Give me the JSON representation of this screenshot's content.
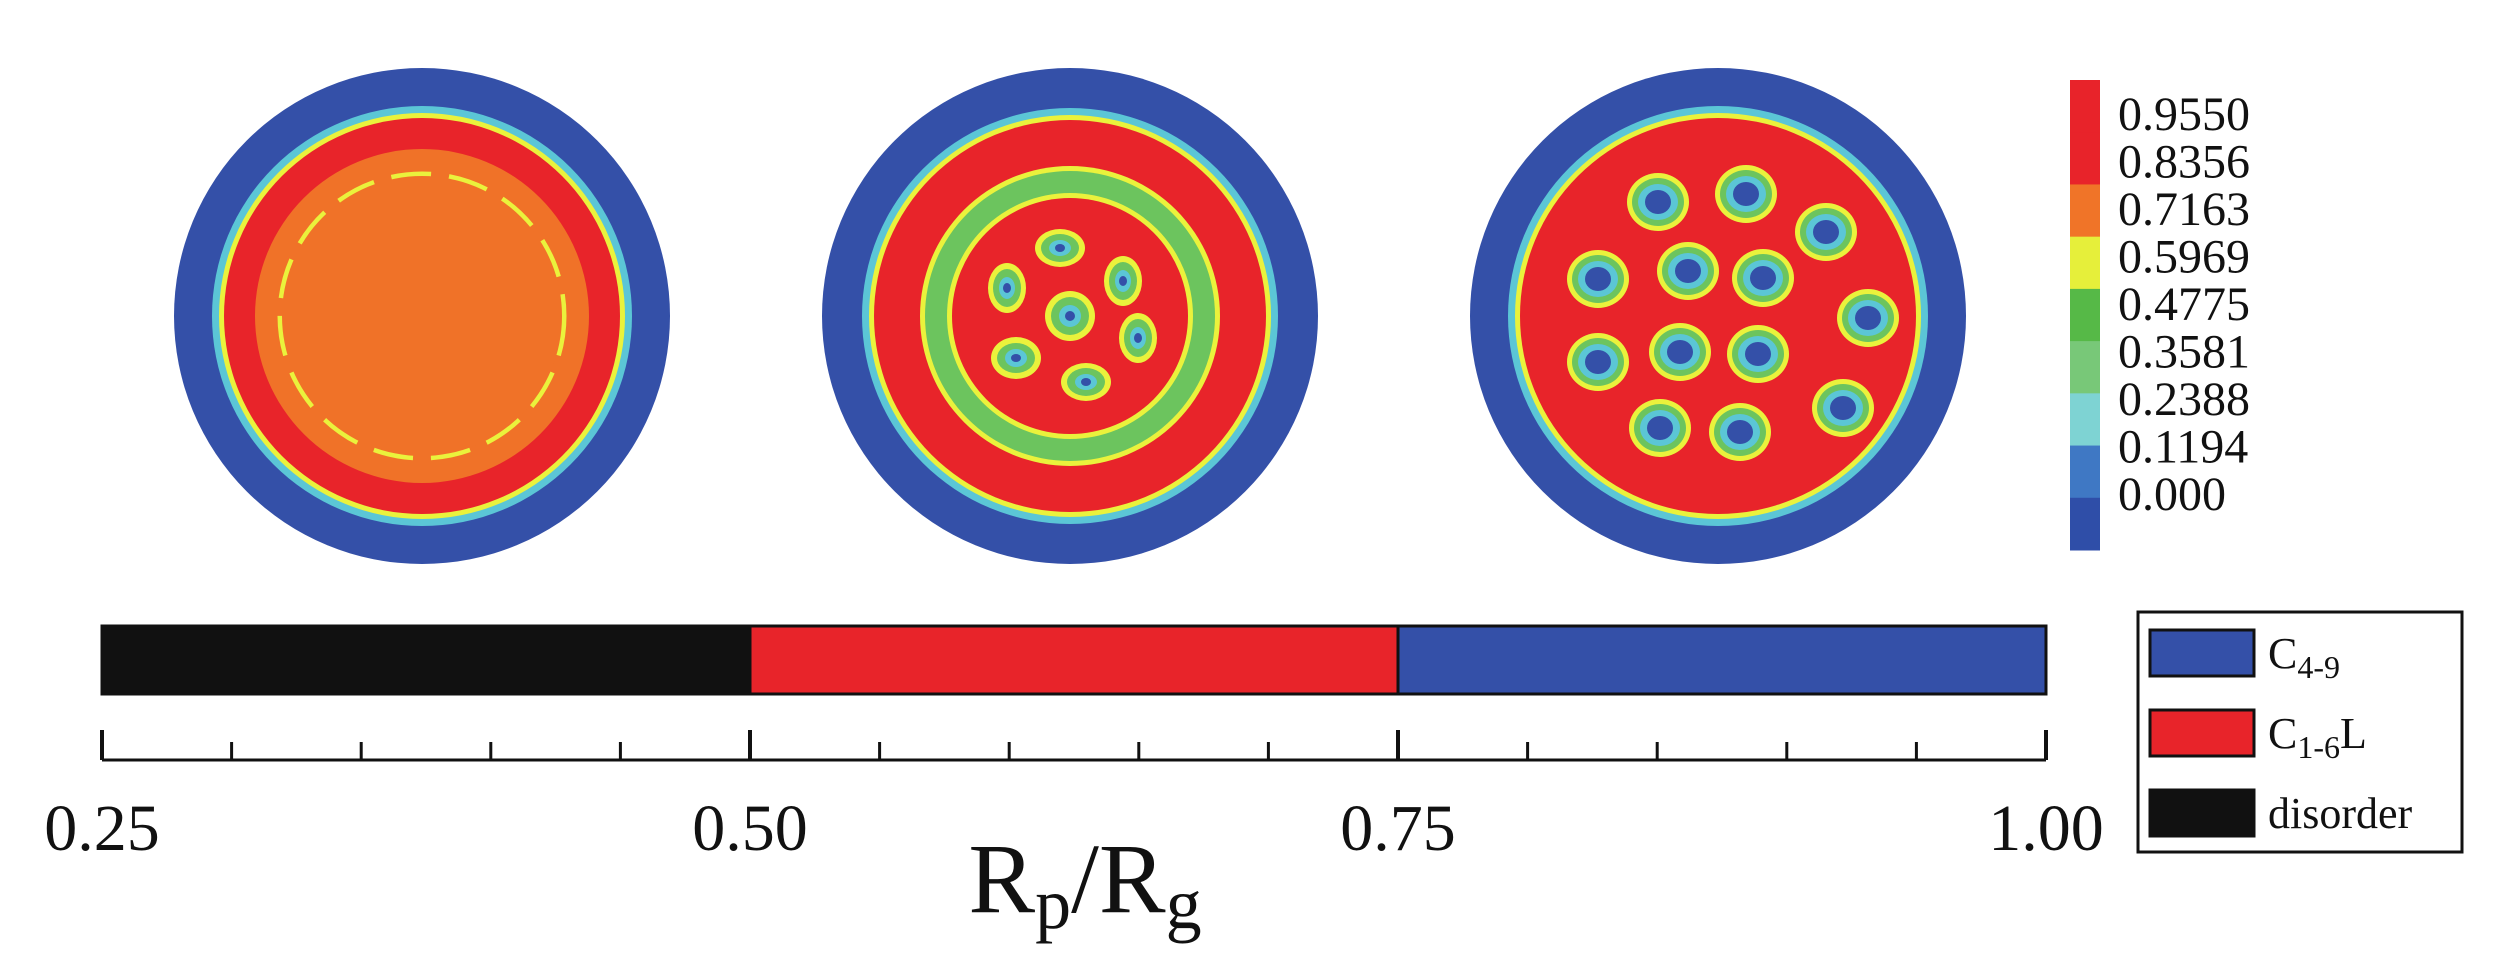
{
  "figure": {
    "colorbar": {
      "ticks": [
        "0.9550",
        "0.8356",
        "0.7163",
        "0.5969",
        "0.4775",
        "0.3581",
        "0.2388",
        "0.1194",
        "0.000"
      ],
      "colors": [
        "#e8232a",
        "#e8232a",
        "#f07428",
        "#e6ef3a",
        "#56b947",
        "#78c878",
        "#7ed3d3",
        "#3f78c4",
        "#2f4ea8"
      ]
    },
    "palette": {
      "blue": "#3450a8",
      "red": "#e8242a",
      "orange": "#f07228",
      "yellow": "#eaf23c",
      "green": "#6cc45e",
      "cyan": "#5bc6d6",
      "midblue": "#4a7ccb",
      "black": "#111111"
    },
    "axis": {
      "min": 0.25,
      "max": 1.0,
      "major_ticks": [
        "0.25",
        "0.50",
        "0.75",
        "1.00"
      ],
      "major_values": [
        0.25,
        0.5,
        0.75,
        1.0
      ],
      "minor_step": 0.05,
      "label_main_1": "R",
      "label_sub_1": "p",
      "label_slash": "/",
      "label_main_2": "R",
      "label_sub_2": "g"
    },
    "phase_bar": [
      {
        "phase": "disorder",
        "from": 0.25,
        "to": 0.5,
        "color": "#111111"
      },
      {
        "phase": "C1-6L",
        "from": 0.5,
        "to": 0.75,
        "color": "#e8242a"
      },
      {
        "phase": "C4-9",
        "from": 0.75,
        "to": 1.0,
        "color": "#3450a8"
      }
    ],
    "legend": [
      {
        "main": "C",
        "sub": "4-9",
        "suffix": "",
        "color": "#3450a8"
      },
      {
        "main": "C",
        "sub": "1-6",
        "suffix": "L",
        "color": "#e8242a"
      },
      {
        "main": "disorder",
        "sub": "",
        "suffix": "",
        "color": "#111111"
      }
    ]
  }
}
